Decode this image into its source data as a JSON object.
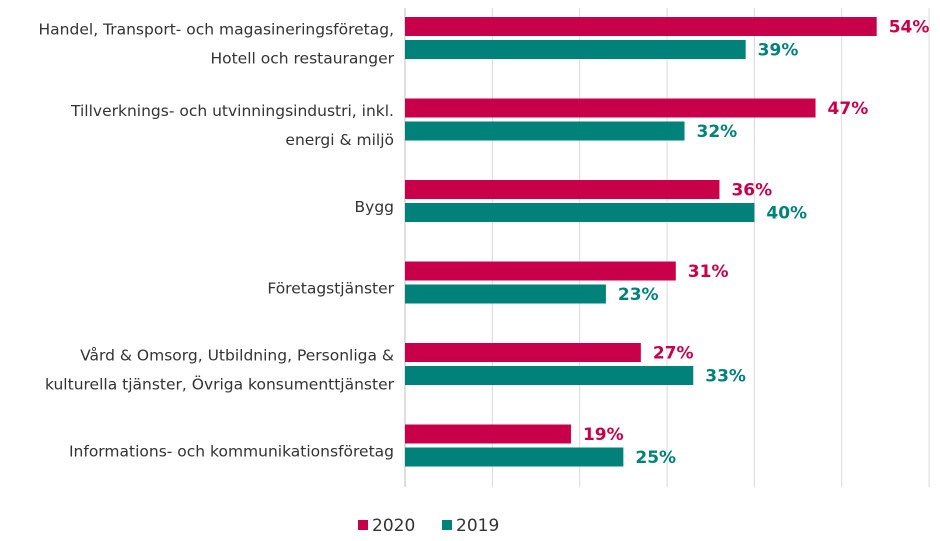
{
  "chart_data": {
    "type": "bar",
    "orientation": "horizontal",
    "categories": [
      [
        "Handel, Transport- och magasineringsföretag,",
        "Hotell och restauranger"
      ],
      [
        "Tillverknings- och utvinningsindustri, inkl.",
        "energi & miljö"
      ],
      [
        "Bygg"
      ],
      [
        "Företagstjänster"
      ],
      [
        "Vård & Omsorg, Utbildning, Personliga &",
        "kulturella tjänster, Övriga konsumenttjänster"
      ],
      [
        "Informations- och kommunikationsföretag"
      ]
    ],
    "series": [
      {
        "name": "2020",
        "color": "#c8004a",
        "values": [
          54,
          47,
          36,
          31,
          27,
          19
        ],
        "labels": [
          "54%",
          "47%",
          "36%",
          "31%",
          "27%",
          "19%"
        ]
      },
      {
        "name": "2019",
        "color": "#00827a",
        "values": [
          39,
          32,
          40,
          23,
          33,
          25
        ],
        "labels": [
          "39%",
          "32%",
          "40%",
          "23%",
          "33%",
          "25%"
        ]
      }
    ],
    "xlim": [
      0,
      60
    ],
    "x_gridlines": [
      0,
      10,
      20,
      30,
      40,
      50,
      60
    ],
    "grid": true,
    "legend_position": "bottom-center"
  }
}
